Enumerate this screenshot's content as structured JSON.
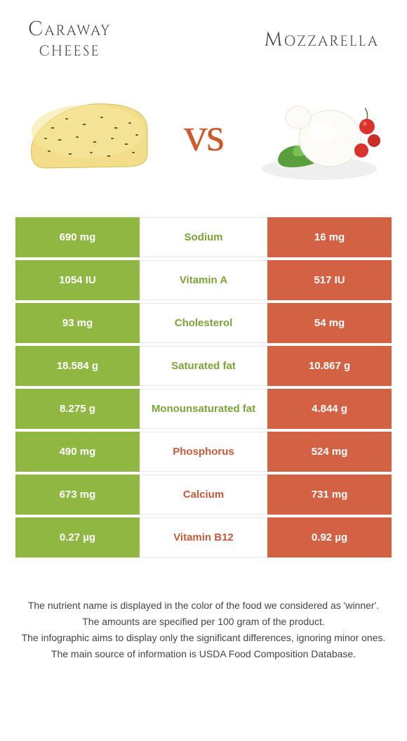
{
  "header": {
    "left_title_line1": "Caraway",
    "left_title_line2": "cheese",
    "right_title": "Mozzarella"
  },
  "vs_label": "vs",
  "colors": {
    "left_bg": "#8fb741",
    "right_bg": "#d26243",
    "left_winner_text": "#7ba336",
    "right_winner_text": "#c85a3a",
    "vs_color": "#cc5a2a"
  },
  "rows": [
    {
      "left": "690 mg",
      "label": "Sodium",
      "right": "16 mg",
      "winner": "left"
    },
    {
      "left": "1054 IU",
      "label": "Vitamin A",
      "right": "517 IU",
      "winner": "left"
    },
    {
      "left": "93 mg",
      "label": "Cholesterol",
      "right": "54 mg",
      "winner": "left"
    },
    {
      "left": "18.584 g",
      "label": "Saturated fat",
      "right": "10.867 g",
      "winner": "left"
    },
    {
      "left": "8.275 g",
      "label": "Monounsaturated fat",
      "right": "4.844 g",
      "winner": "left"
    },
    {
      "left": "490 mg",
      "label": "Phosphorus",
      "right": "524 mg",
      "winner": "right"
    },
    {
      "left": "673 mg",
      "label": "Calcium",
      "right": "731 mg",
      "winner": "right"
    },
    {
      "left": "0.27 µg",
      "label": "Vitamin B12",
      "right": "0.92 µg",
      "winner": "right"
    }
  ],
  "footer": {
    "l1": "The nutrient name is displayed in the color of the food we considered as 'winner'.",
    "l2": "The amounts are specified per 100 gram of the product.",
    "l3": "The infographic aims to display only the significant differences, ignoring minor ones.",
    "l4": "The main source of information is USDA Food Composition Database."
  }
}
